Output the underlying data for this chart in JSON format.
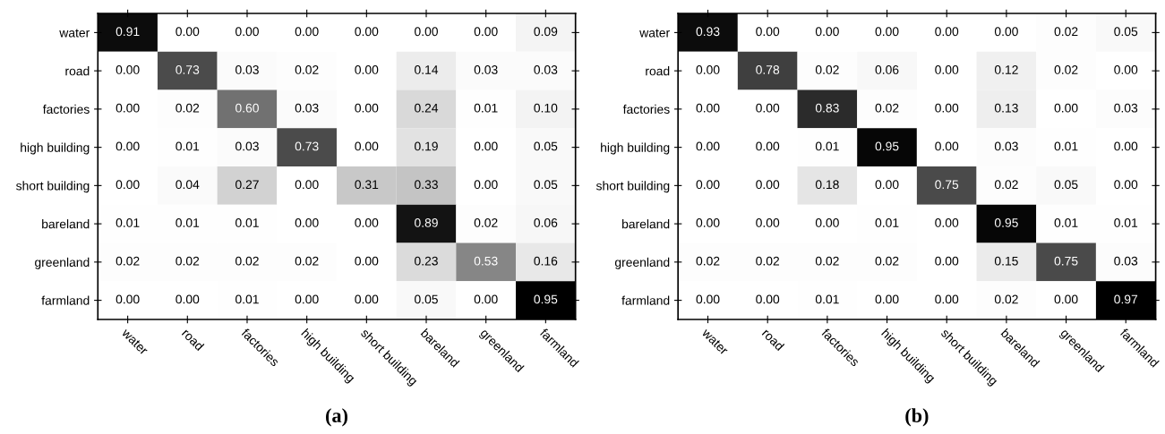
{
  "chart_data": [
    {
      "type": "heatmap",
      "annotations": [
        "(a)"
      ],
      "categories": [
        "water",
        "road",
        "factories",
        "high building",
        "short building",
        "bareland",
        "greenland",
        "farmland"
      ],
      "y_categories": [
        "water",
        "road",
        "factories",
        "high building",
        "short building",
        "bareland",
        "greenland",
        "farmland"
      ],
      "cells": [
        [
          0.91,
          0.0,
          0.0,
          0.0,
          0.0,
          0.0,
          0.0,
          0.09
        ],
        [
          0.0,
          0.73,
          0.03,
          0.02,
          0.0,
          0.14,
          0.03,
          0.03
        ],
        [
          0.0,
          0.02,
          0.6,
          0.03,
          0.0,
          0.24,
          0.01,
          0.1
        ],
        [
          0.0,
          0.01,
          0.03,
          0.73,
          0.0,
          0.19,
          0.0,
          0.05
        ],
        [
          0.0,
          0.04,
          0.27,
          0.0,
          0.31,
          0.33,
          0.0,
          0.05
        ],
        [
          0.01,
          0.01,
          0.01,
          0.0,
          0.0,
          0.89,
          0.02,
          0.06
        ],
        [
          0.02,
          0.02,
          0.02,
          0.02,
          0.0,
          0.23,
          0.53,
          0.16
        ],
        [
          0.0,
          0.0,
          0.01,
          0.0,
          0.0,
          0.05,
          0.0,
          0.95
        ]
      ],
      "cell_labels": [
        [
          "0.91",
          "0.00",
          "0.00",
          "0.00",
          "0.00",
          "0.00",
          "0.00",
          "0.09"
        ],
        [
          "0.00",
          "0.73",
          "0.03",
          "0.02",
          "0.00",
          "0.14",
          "0.03",
          "0.03"
        ],
        [
          "0.00",
          "0.02",
          "0.60",
          "0.03",
          "0.00",
          "0.24",
          "0.01",
          "0.10"
        ],
        [
          "0.00",
          "0.01",
          "0.03",
          "0.73",
          "0.00",
          "0.19",
          "0.00",
          "0.05"
        ],
        [
          "0.00",
          "0.04",
          "0.27",
          "0.00",
          "0.31",
          "0.33",
          "0.00",
          "0.05"
        ],
        [
          "0.01",
          "0.01",
          "0.01",
          "0.00",
          "0.00",
          "0.89",
          "0.02",
          "0.06"
        ],
        [
          "0.02",
          "0.02",
          "0.02",
          "0.02",
          "0.00",
          "0.23",
          "0.53",
          "0.16"
        ],
        [
          "0.00",
          "0.00",
          "0.01",
          "0.00",
          "0.00",
          "0.05",
          "0.00",
          "0.95"
        ]
      ]
    },
    {
      "type": "heatmap",
      "annotations": [
        "(b)"
      ],
      "categories": [
        "water",
        "road",
        "factories",
        "high building",
        "short building",
        "bareland",
        "greenland",
        "farmland"
      ],
      "y_categories": [
        "water",
        "road",
        "factories",
        "high building",
        "short building",
        "bareland",
        "greenland",
        "farmland"
      ],
      "cells": [
        [
          0.93,
          0.0,
          0.0,
          0.0,
          0.0,
          0.0,
          0.02,
          0.05
        ],
        [
          0.0,
          0.78,
          0.02,
          0.06,
          0.0,
          0.12,
          0.02,
          0.0
        ],
        [
          0.0,
          0.0,
          0.83,
          0.02,
          0.0,
          0.13,
          0.0,
          0.03
        ],
        [
          0.0,
          0.0,
          0.01,
          0.95,
          0.0,
          0.03,
          0.01,
          0.0
        ],
        [
          0.0,
          0.0,
          0.18,
          0.0,
          0.75,
          0.02,
          0.05,
          0.0
        ],
        [
          0.0,
          0.0,
          0.0,
          0.01,
          0.0,
          0.95,
          0.01,
          0.01
        ],
        [
          0.02,
          0.02,
          0.02,
          0.02,
          0.0,
          0.15,
          0.75,
          0.03
        ],
        [
          0.0,
          0.0,
          0.01,
          0.0,
          0.0,
          0.02,
          0.0,
          0.97
        ]
      ],
      "cell_labels": [
        [
          "0.93",
          "0.00",
          "0.00",
          "0.00",
          "0.00",
          "0.00",
          "0.02",
          "0.05"
        ],
        [
          "0.00",
          "0.78",
          "0.02",
          "0.06",
          "0.00",
          "0.12",
          "0.02",
          "0.00"
        ],
        [
          "0.00",
          "0.00",
          "0.83",
          "0.02",
          "0.00",
          "0.13",
          "0.00",
          "0.03"
        ],
        [
          "0.00",
          "0.00",
          "0.01",
          "0.95",
          "0.00",
          "0.03",
          "0.01",
          "0.00"
        ],
        [
          "0.00",
          "0.00",
          "0.18",
          "0.00",
          "0.75",
          "0.02",
          "0.05",
          "0.00"
        ],
        [
          "0.00",
          "0.00",
          "0.00",
          "0.01",
          "0.00",
          "0.95",
          "0.01",
          "0.01"
        ],
        [
          "0.02",
          "0.02",
          "0.02",
          "0.02",
          "0.00",
          "0.15",
          "0.75",
          "0.03"
        ],
        [
          "0.00",
          "0.00",
          "0.01",
          "0.00",
          "0.00",
          "0.02",
          "0.00",
          "0.97"
        ]
      ]
    }
  ]
}
